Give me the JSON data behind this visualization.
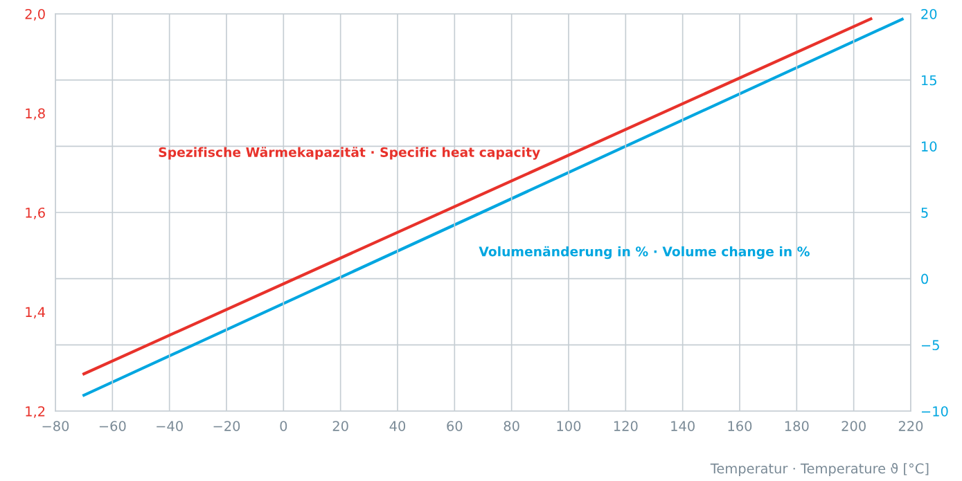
{
  "chart_data": {
    "type": "line",
    "xlabel": "Temperatur · Temperature ϑ [°C]",
    "series": [
      {
        "name": "Spezifische Wärmekapazität · Specific heat capacity",
        "color": "#e8322b",
        "x": [
          -70,
          206
        ],
        "values": [
          1.275,
          1.99
        ]
      },
      {
        "name": "Volumenänderung in % · Volume change in %",
        "color": "#00a6e0",
        "axis": "y2",
        "x": [
          -70,
          217
        ],
        "values": [
          -8.8,
          19.6
        ]
      }
    ],
    "xlim": [
      -80,
      220
    ],
    "xticks": [
      {
        "value": -80,
        "label": "−80"
      },
      {
        "value": -60,
        "label": "−60"
      },
      {
        "value": -40,
        "label": "−40"
      },
      {
        "value": -20,
        "label": "−20"
      },
      0,
      20,
      40,
      60,
      80,
      100,
      120,
      140,
      160,
      180,
      200,
      220
    ],
    "ylim": [
      1.2,
      2.0
    ],
    "yticks": [
      {
        "value": 1.2,
        "label": "1,2"
      },
      {
        "value": 1.4,
        "label": "1,4"
      },
      {
        "value": 1.6,
        "label": "1,6"
      },
      {
        "value": 1.8,
        "label": "1,8"
      },
      {
        "value": 2.0,
        "label": "2,0"
      }
    ],
    "y2lim": [
      -10,
      20
    ],
    "y2ticks": [
      {
        "value": -10,
        "label": "−10"
      },
      {
        "value": -5,
        "label": "−5"
      },
      0,
      5,
      10,
      15,
      20
    ],
    "grid": true,
    "legend": false,
    "marker": "none",
    "line_style": "solid"
  }
}
